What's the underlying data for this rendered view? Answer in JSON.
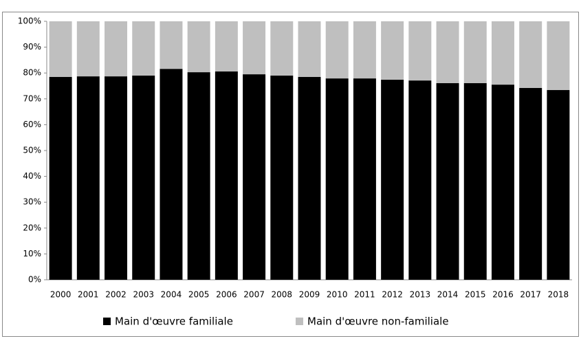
{
  "chart_data": {
    "type": "stacked_bar",
    "categories": [
      "2000",
      "2001",
      "2002",
      "2003",
      "2004",
      "2005",
      "2006",
      "2007",
      "2008",
      "2009",
      "2010",
      "2011",
      "2012",
      "2013",
      "2014",
      "2015",
      "2016",
      "2017",
      "2018"
    ],
    "series": [
      {
        "name": "Main d'œuvre familiale",
        "color": "#000000",
        "values": [
          78.5,
          78.7,
          78.7,
          79,
          81.6,
          80.3,
          80.6,
          79.5,
          79,
          78.5,
          77.9,
          77.9,
          77.4,
          77.1,
          76.1,
          76.1,
          75.5,
          74.2,
          73.4
        ]
      },
      {
        "name": "Main d'œuvre non-familiale",
        "color": "#bfbfbf",
        "values": [
          21.5,
          21.3,
          21.3,
          21,
          18.4,
          19.7,
          19.4,
          20.5,
          21,
          21.5,
          22.1,
          22.1,
          22.6,
          22.9,
          23.9,
          23.9,
          24.5,
          25.8,
          26.6
        ]
      }
    ],
    "ylim": [
      0,
      100
    ],
    "yticks": [
      {
        "value": 0,
        "label": "0%"
      },
      {
        "value": 10,
        "label": "10%"
      },
      {
        "value": 20,
        "label": "20%"
      },
      {
        "value": 30,
        "label": "30%"
      },
      {
        "value": 40,
        "label": "40%"
      },
      {
        "value": 50,
        "label": "50%"
      },
      {
        "value": 60,
        "label": "60%"
      },
      {
        "value": 70,
        "label": "70%"
      },
      {
        "value": 80,
        "label": "80%"
      },
      {
        "value": 90,
        "label": "90%"
      },
      {
        "value": 100,
        "label": "100%"
      }
    ],
    "legend": "bottom"
  }
}
